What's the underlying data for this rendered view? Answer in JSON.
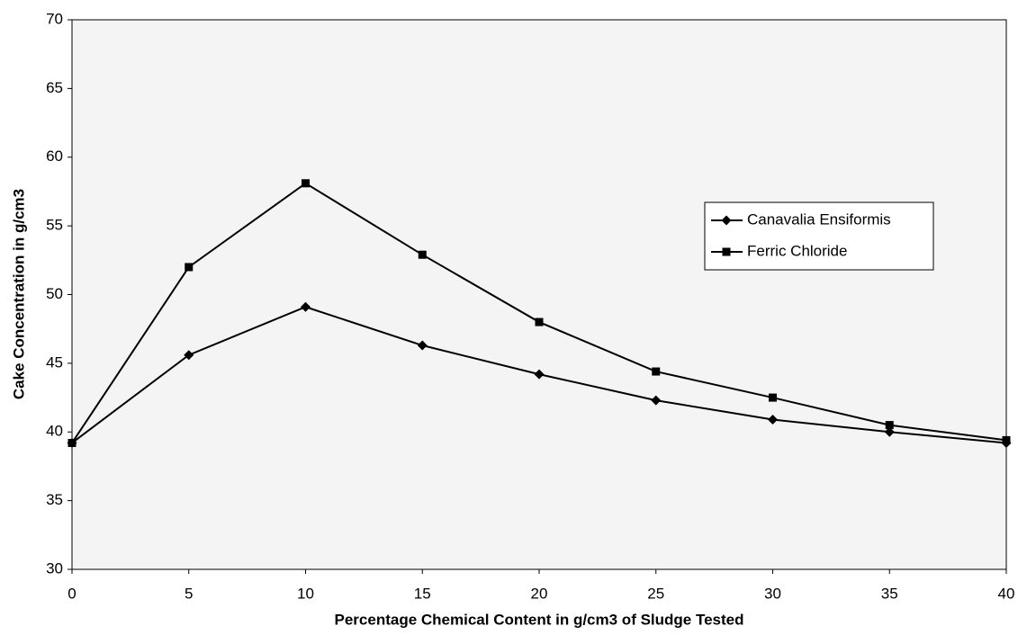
{
  "chart_data": {
    "type": "line",
    "x_label": "Percentage Chemical Content in g/cm3 of Sludge Tested",
    "y_label": "Cake Concentration in g/cm3",
    "x": [
      0,
      5,
      10,
      15,
      20,
      25,
      30,
      35,
      40
    ],
    "series": [
      {
        "name": "Canavalia Ensiformis",
        "color": "#000000",
        "marker": "diamond",
        "values": [
          39.2,
          45.6,
          49.1,
          46.3,
          44.2,
          42.3,
          40.9,
          40,
          39.2
        ]
      },
      {
        "name": "Ferric Chloride",
        "color": "#000000",
        "marker": "square",
        "values": [
          39.2,
          52,
          58.1,
          52.9,
          48,
          44.4,
          42.5,
          40.5,
          39.4
        ]
      }
    ],
    "xlim": [
      0,
      40
    ],
    "xticks": [
      0,
      5,
      10,
      15,
      20,
      25,
      30,
      35,
      40
    ],
    "ylim": [
      30,
      70
    ],
    "yticks": [
      30,
      35,
      40,
      45,
      50,
      55,
      60,
      65,
      70
    ],
    "grid": false,
    "legend_position": "right"
  }
}
